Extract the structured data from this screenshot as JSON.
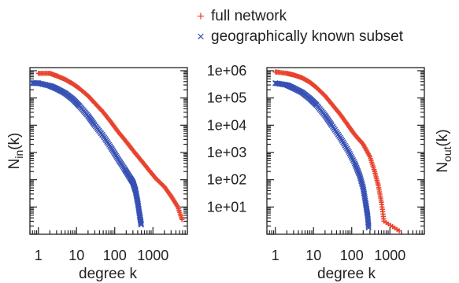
{
  "chart_data": [
    {
      "type": "scatter",
      "panel": "left",
      "xlabel": "degree k",
      "ylabel": "N",
      "ylabel_sub": "in",
      "ylabel_suffix": "(k)",
      "x_scale": "log",
      "y_scale": "log",
      "xlim": [
        0.6,
        8000
      ],
      "ylim": [
        1,
        1300000
      ],
      "x_ticks": [
        "1",
        "10",
        "100",
        "1000"
      ],
      "x_tick_values": [
        1,
        10,
        100,
        1000
      ],
      "series": [
        {
          "name": "full network",
          "color": "#e8432e",
          "marker": "plus",
          "points": [
            [
              1,
              800000
            ],
            [
              2,
              800000
            ],
            [
              3,
              650000
            ],
            [
              5,
              480000
            ],
            [
              8,
              330000
            ],
            [
              12,
              220000
            ],
            [
              20,
              120000
            ],
            [
              30,
              65000
            ],
            [
              50,
              30000
            ],
            [
              80,
              13000
            ],
            [
              120,
              6000
            ],
            [
              200,
              2500
            ],
            [
              300,
              1200
            ],
            [
              500,
              500
            ],
            [
              800,
              220
            ],
            [
              1200,
              110
            ],
            [
              2000,
              55
            ],
            [
              3000,
              25
            ],
            [
              4500,
              10
            ],
            [
              6000,
              3
            ]
          ]
        },
        {
          "name": "geographically known subset",
          "color": "#3650b4",
          "marker": "x",
          "points": [
            [
              0.7,
              350000
            ],
            [
              1,
              350000
            ],
            [
              2,
              280000
            ],
            [
              3,
              220000
            ],
            [
              5,
              150000
            ],
            [
              8,
              90000
            ],
            [
              12,
              50000
            ],
            [
              20,
              22000
            ],
            [
              30,
              10000
            ],
            [
              50,
              4000
            ],
            [
              80,
              1500
            ],
            [
              120,
              600
            ],
            [
              180,
              250
            ],
            [
              250,
              120
            ],
            [
              300,
              80
            ],
            [
              350,
              40
            ],
            [
              400,
              15
            ],
            [
              450,
              5
            ],
            [
              500,
              2
            ]
          ]
        }
      ]
    },
    {
      "type": "scatter",
      "panel": "right",
      "xlabel": "degree k",
      "ylabel": "N",
      "ylabel_sub": "out",
      "ylabel_suffix": "(k)",
      "x_scale": "log",
      "y_scale": "log",
      "xlim": [
        0.6,
        8000
      ],
      "ylim": [
        1,
        1300000
      ],
      "y_ticks": [
        "1e+06",
        "1e+05",
        "1e+04",
        "1e+03",
        "1e+02",
        "1e+01"
      ],
      "y_tick_values": [
        1000000,
        100000,
        10000,
        1000,
        100,
        10
      ],
      "x_ticks": [
        "1",
        "10",
        "100",
        "1000"
      ],
      "x_tick_values": [
        1,
        10,
        100,
        1000
      ],
      "series": [
        {
          "name": "full network",
          "color": "#e8432e",
          "marker": "plus",
          "points": [
            [
              1,
              900000
            ],
            [
              2,
              800000
            ],
            [
              3,
              700000
            ],
            [
              5,
              550000
            ],
            [
              8,
              380000
            ],
            [
              12,
              240000
            ],
            [
              20,
              120000
            ],
            [
              30,
              60000
            ],
            [
              50,
              25000
            ],
            [
              80,
              10000
            ],
            [
              120,
              4500
            ],
            [
              200,
              2000
            ],
            [
              300,
              700
            ],
            [
              400,
              200
            ],
            [
              500,
              60
            ],
            [
              600,
              15
            ],
            [
              700,
              3
            ],
            [
              2000,
              1.2
            ]
          ]
        },
        {
          "name": "geographically known subset",
          "color": "#3650b4",
          "marker": "x",
          "points": [
            [
              1,
              350000
            ],
            [
              2,
              300000
            ],
            [
              3,
              230000
            ],
            [
              5,
              160000
            ],
            [
              8,
              95000
            ],
            [
              12,
              55000
            ],
            [
              20,
              23000
            ],
            [
              30,
              10000
            ],
            [
              50,
              3500
            ],
            [
              80,
              1200
            ],
            [
              120,
              400
            ],
            [
              160,
              150
            ],
            [
              200,
              50
            ],
            [
              230,
              15
            ],
            [
              260,
              5
            ],
            [
              280,
              1.5
            ]
          ]
        }
      ]
    }
  ],
  "legend": {
    "position": "top-right",
    "items": [
      {
        "label": "full network",
        "color": "#e8432e",
        "marker": "plus"
      },
      {
        "label": "geographically known subset",
        "color": "#3650b4",
        "marker": "x"
      }
    ]
  }
}
